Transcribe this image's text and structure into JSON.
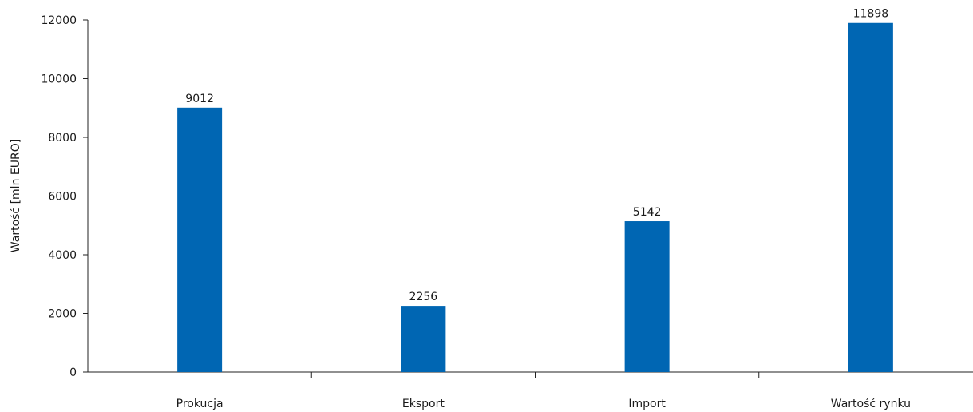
{
  "chart_data": {
    "type": "bar",
    "title": "",
    "xlabel": "",
    "ylabel": "Wartość [mln EURO]",
    "categories": [
      "Prokucja",
      "Eksport",
      "Import",
      "Wartość rynku"
    ],
    "values": [
      9012,
      2256,
      5142,
      11898
    ],
    "data_labels": [
      "9012",
      "2256",
      "5142",
      "11898"
    ],
    "ylim": [
      0,
      12000
    ],
    "yticks": [
      0,
      2000,
      4000,
      6000,
      8000,
      10000,
      12000
    ],
    "ytick_labels": [
      "0",
      "2000",
      "4000",
      "6000",
      "8000",
      "10000",
      "12000"
    ],
    "grid": false,
    "legend": "none",
    "bar_color": "#0066b3"
  }
}
